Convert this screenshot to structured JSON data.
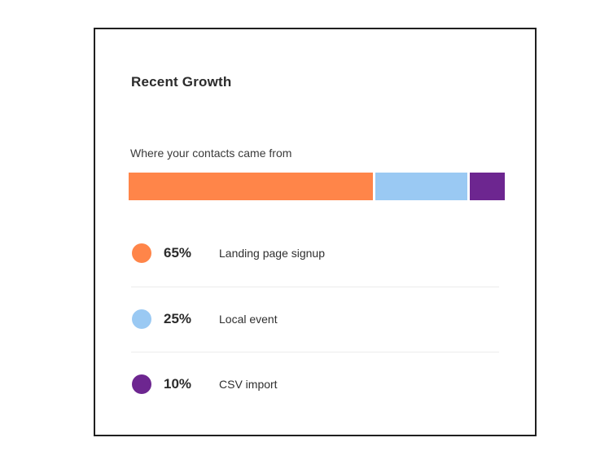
{
  "card": {
    "title": "Recent Growth",
    "subtitle": "Where your contacts came from"
  },
  "sources": [
    {
      "percent_label": "65%",
      "label": "Landing page signup",
      "value": 65,
      "color": "#ff8549",
      "icon": "orange-dot-icon"
    },
    {
      "percent_label": "25%",
      "label": "Local event",
      "value": 25,
      "color": "#9ac9f3",
      "icon": "light-blue-dot-icon"
    },
    {
      "percent_label": "10%",
      "label": "CSV import",
      "value": 10,
      "color": "#6d2690",
      "icon": "purple-dot-icon"
    }
  ]
}
